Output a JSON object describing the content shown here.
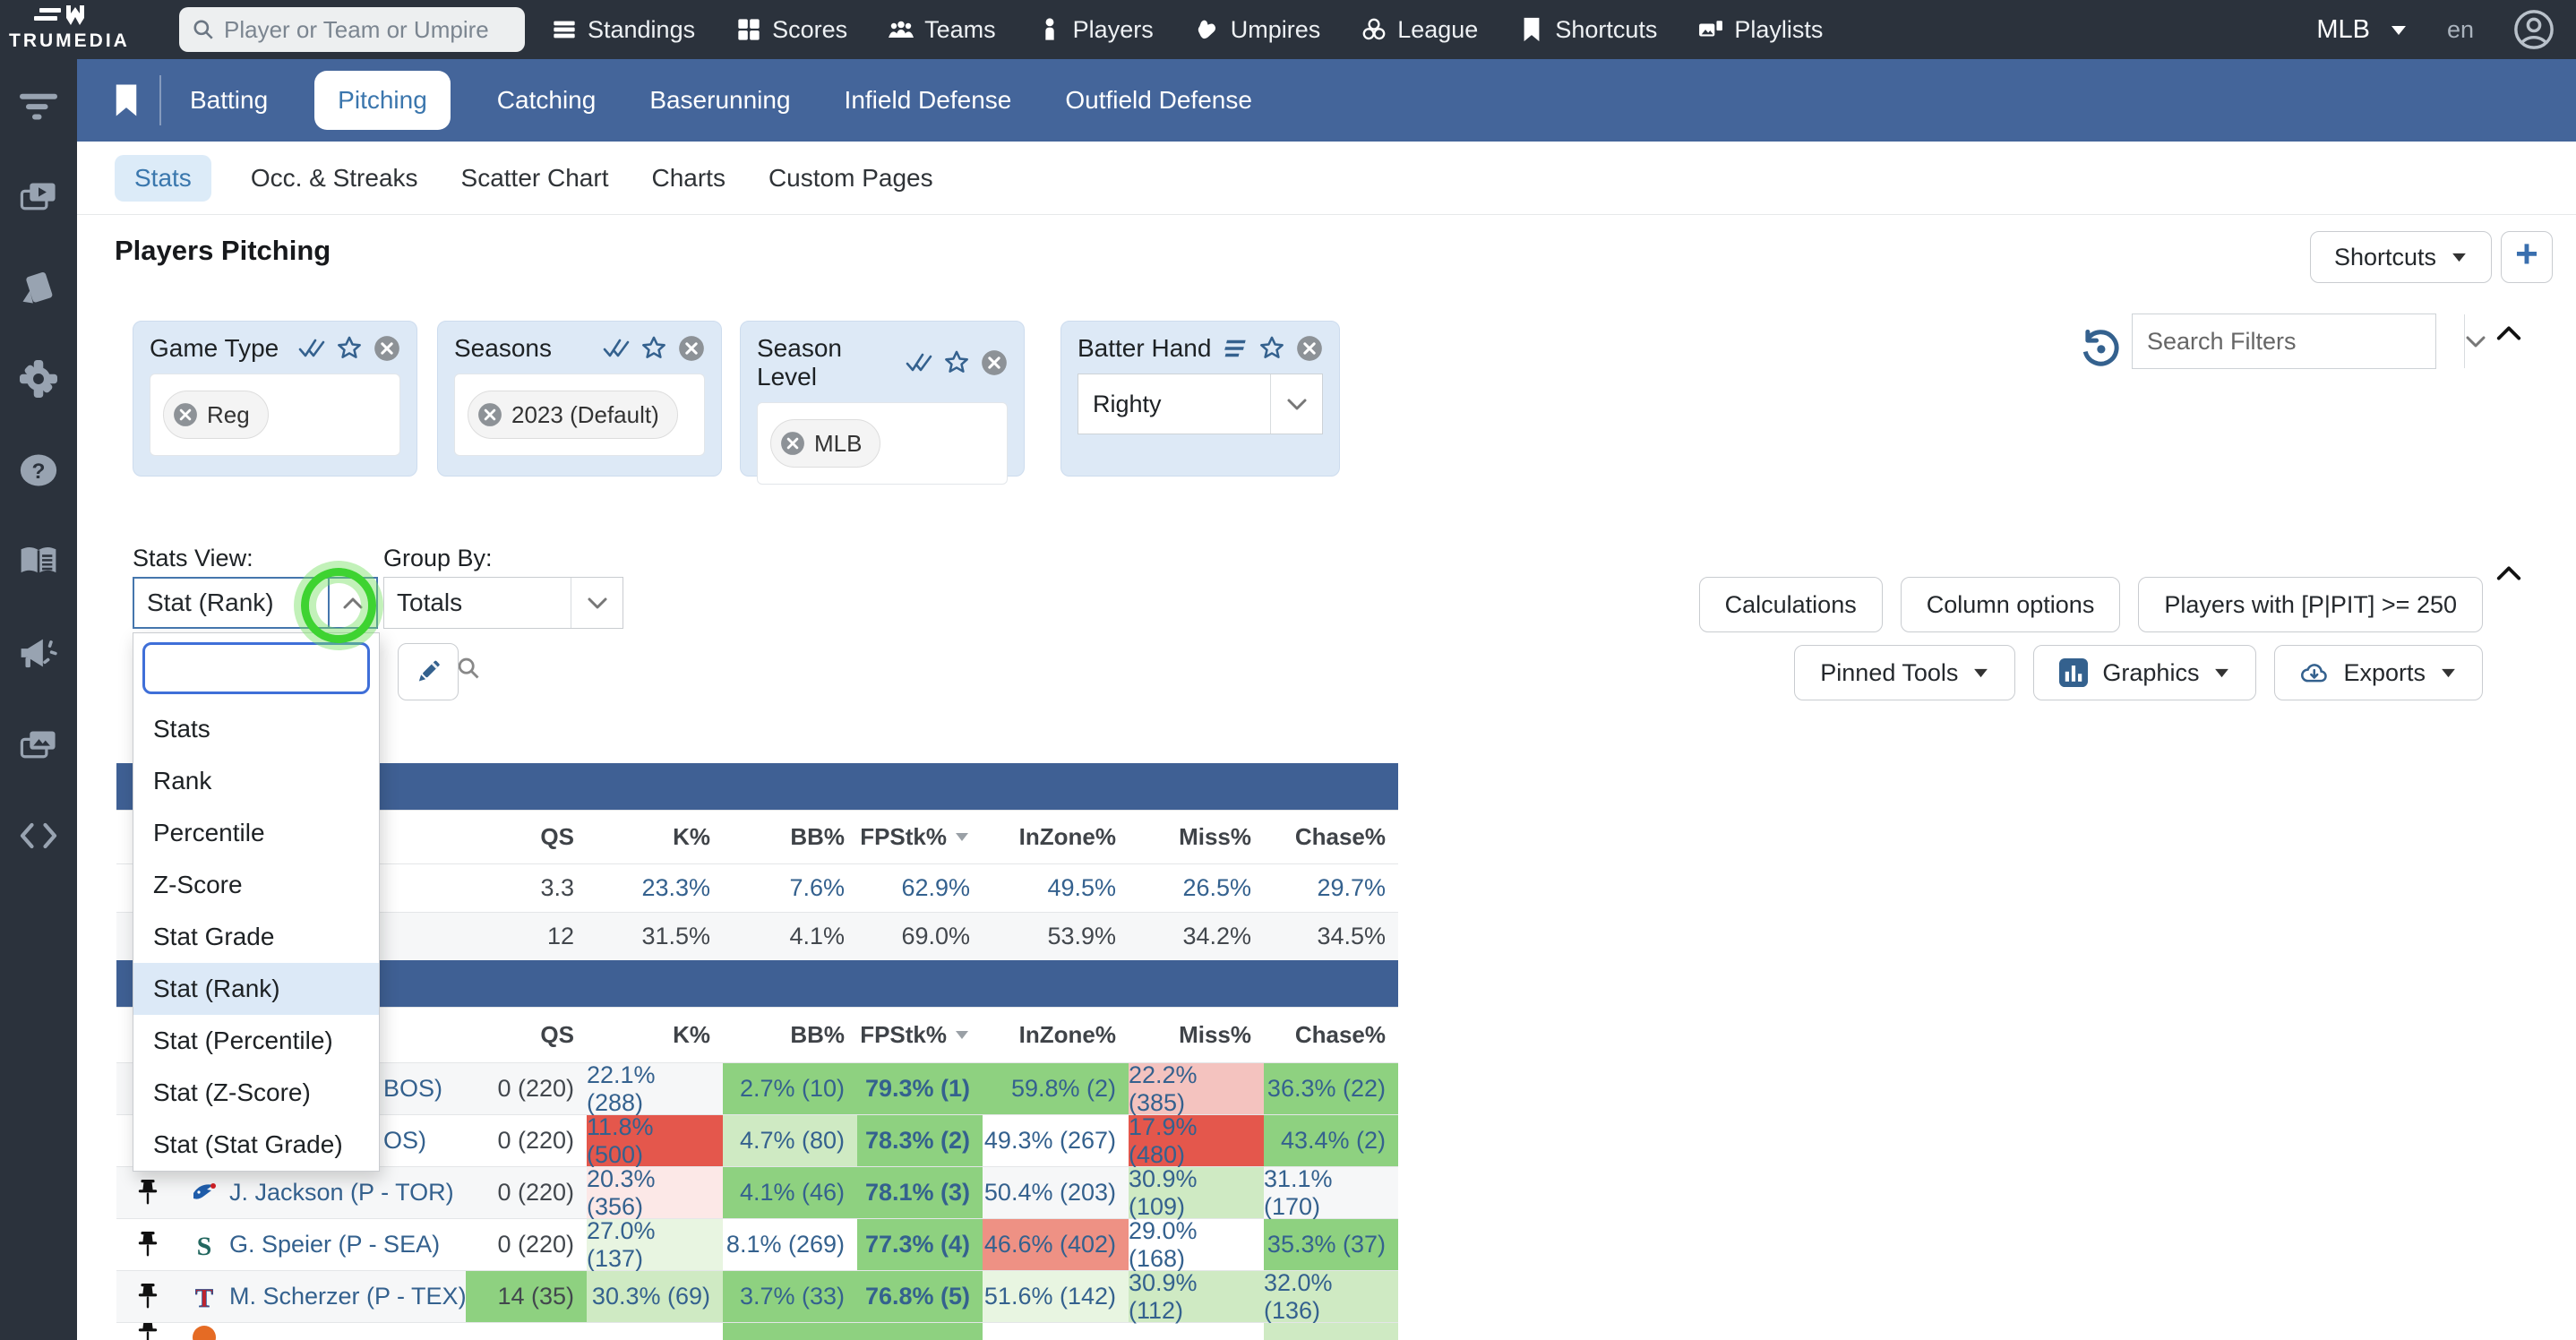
{
  "brand": "TRUMEDIA",
  "topnav": {
    "search_placeholder": "Player or Team or Umpire",
    "items": [
      {
        "label": "Standings",
        "icon": "standings"
      },
      {
        "label": "Scores",
        "icon": "scores"
      },
      {
        "label": "Teams",
        "icon": "teams"
      },
      {
        "label": "Players",
        "icon": "players"
      },
      {
        "label": "Umpires",
        "icon": "umpires"
      },
      {
        "label": "League",
        "icon": "league"
      },
      {
        "label": "Shortcuts",
        "icon": "bookmark"
      },
      {
        "label": "Playlists",
        "icon": "playlists"
      }
    ],
    "league_selector": "MLB",
    "locale": "en"
  },
  "sidebar": {
    "icons": [
      "filter",
      "video-playlists",
      "scouting-cards",
      "settings-gear",
      "help",
      "glossary-book",
      "announcements-megaphone",
      "media-gallery",
      "embed-code"
    ]
  },
  "sport_tabs": {
    "items": [
      "Batting",
      "Pitching",
      "Catching",
      "Baserunning",
      "Infield Defense",
      "Outfield Defense"
    ],
    "active": "Pitching"
  },
  "page_tabs": {
    "items": [
      "Stats",
      "Occ. & Streaks",
      "Scatter Chart",
      "Charts",
      "Custom Pages"
    ],
    "active": "Stats"
  },
  "header": {
    "title": "Players Pitching",
    "shortcuts_button": "Shortcuts",
    "add_button": "+"
  },
  "filters": {
    "cards": [
      {
        "title": "Game Type",
        "type": "chips",
        "chips": [
          "Reg"
        ]
      },
      {
        "title": "Seasons",
        "type": "chips",
        "chips": [
          "2023 (Default)"
        ]
      },
      {
        "title": "Season Level",
        "type": "chips",
        "chips": [
          "MLB"
        ]
      },
      {
        "title": "Batter Hand",
        "type": "select",
        "value": "Righty"
      }
    ],
    "search_placeholder": "Search Filters"
  },
  "controls": {
    "stats_view_label": "Stats View:",
    "stats_view_value": "Stat (Rank)",
    "group_by_label": "Group By:",
    "group_by_value": "Totals",
    "view_options": [
      "Stats",
      "Rank",
      "Percentile",
      "Z-Score",
      "Stat Grade",
      "Stat (Rank)",
      "Stat (Percentile)",
      "Stat (Z-Score)",
      "Stat (Stat Grade)"
    ],
    "selected_option": "Stat (Rank)",
    "option_search_value": "",
    "buttons_row1": [
      "Calculations",
      "Column options",
      "Players with [P|PIT] >= 250"
    ],
    "buttons_row2": [
      {
        "label": "Pinned Tools",
        "icon": null
      },
      {
        "label": "Graphics",
        "icon": "bar-chart"
      },
      {
        "label": "Exports",
        "icon": "cloud-download"
      }
    ]
  },
  "annotation": {
    "highlight_color": "#3ed331"
  },
  "table": {
    "columns": [
      "QS",
      "K%",
      "BB%",
      "FPStk%",
      "InZone%",
      "Miss%",
      "Chase%"
    ],
    "sorted_column": "FPStk%",
    "league_rows": [
      {
        "tone": "blue",
        "values": [
          "3.3",
          "23.3%",
          "7.6%",
          "62.9%",
          "49.5%",
          "26.5%",
          "29.7%"
        ]
      },
      {
        "tone": "dark",
        "values": [
          "12",
          "31.5%",
          "4.1%",
          "69.0%",
          "53.9%",
          "34.2%",
          "34.5%"
        ]
      }
    ],
    "player_rows": [
      {
        "name": "BOS)",
        "team_logo": null,
        "clipped": true,
        "shade": true,
        "cells": [
          {
            "t": "0 (220)",
            "bg": "none",
            "dark": true
          },
          {
            "t": "22.1% (288)",
            "bg": "none"
          },
          {
            "t": "2.7% (10)",
            "bg": "green"
          },
          {
            "t": "79.3% (1)",
            "bg": "green",
            "bold": true
          },
          {
            "t": "59.8% (2)",
            "bg": "green"
          },
          {
            "t": "22.2% (385)",
            "bg": "pink"
          },
          {
            "t": "36.3% (22)",
            "bg": "green"
          }
        ]
      },
      {
        "name": "OS)",
        "team_logo": null,
        "clipped": true,
        "shade": false,
        "cells": [
          {
            "t": "0 (220)",
            "bg": "none",
            "dark": true
          },
          {
            "t": "11.8% (500)",
            "bg": "red"
          },
          {
            "t": "4.7% (80)",
            "bg": "lightgreen"
          },
          {
            "t": "78.3% (2)",
            "bg": "green",
            "bold": true
          },
          {
            "t": "49.3% (267)",
            "bg": "none"
          },
          {
            "t": "17.9% (480)",
            "bg": "red"
          },
          {
            "t": "43.4% (2)",
            "bg": "green"
          }
        ]
      },
      {
        "name": "J. Jackson (P - TOR)",
        "team_logo": "toronto-blue-jays",
        "clipped": false,
        "shade": true,
        "cells": [
          {
            "t": "0 (220)",
            "bg": "none",
            "dark": true
          },
          {
            "t": "20.3% (356)",
            "bg": "faintpink"
          },
          {
            "t": "4.1% (46)",
            "bg": "green"
          },
          {
            "t": "78.1% (3)",
            "bg": "green",
            "bold": true
          },
          {
            "t": "50.4% (203)",
            "bg": "none"
          },
          {
            "t": "30.9% (109)",
            "bg": "lightgreen"
          },
          {
            "t": "31.1% (170)",
            "bg": "none"
          }
        ]
      },
      {
        "name": "G. Speier (P - SEA)",
        "team_logo": "seattle-mariners",
        "clipped": false,
        "shade": false,
        "cells": [
          {
            "t": "0 (220)",
            "bg": "none",
            "dark": true
          },
          {
            "t": "27.0% (137)",
            "bg": "faintgreen"
          },
          {
            "t": "8.1% (269)",
            "bg": "none"
          },
          {
            "t": "77.3% (4)",
            "bg": "green",
            "bold": true
          },
          {
            "t": "46.6% (402)",
            "bg": "salmon"
          },
          {
            "t": "29.0% (168)",
            "bg": "none"
          },
          {
            "t": "35.3% (37)",
            "bg": "green"
          }
        ]
      },
      {
        "name": "M. Scherzer (P - TEX)",
        "team_logo": "texas-rangers",
        "clipped": false,
        "shade": true,
        "cells": [
          {
            "t": "14 (35)",
            "bg": "green",
            "dark": true
          },
          {
            "t": "30.3% (69)",
            "bg": "lightgreen"
          },
          {
            "t": "3.7% (33)",
            "bg": "green"
          },
          {
            "t": "76.8% (5)",
            "bg": "green",
            "bold": true
          },
          {
            "t": "51.6% (142)",
            "bg": "faintgreen"
          },
          {
            "t": "30.9% (112)",
            "bg": "lightgreen"
          },
          {
            "t": "32.0% (136)",
            "bg": "lightgreen"
          }
        ]
      },
      {
        "name": "",
        "team_logo": "partial-orange",
        "clipped": false,
        "shade": false,
        "partial": true,
        "cells": [
          {
            "t": "",
            "bg": "none"
          },
          {
            "t": "",
            "bg": "none"
          },
          {
            "t": "",
            "bg": "green"
          },
          {
            "t": "",
            "bg": "green"
          },
          {
            "t": "",
            "bg": "none"
          },
          {
            "t": "",
            "bg": "none"
          },
          {
            "t": "",
            "bg": "lightgreen"
          }
        ]
      }
    ],
    "palette": {
      "green": "#8ed180",
      "lightgreen": "#cfeac3",
      "faintgreen": "#e8f5e1",
      "pink": "#f4c3bf",
      "faintpink": "#fce8e7",
      "red": "#e4574c",
      "salmon": "#ee9184",
      "none": "transparent"
    }
  }
}
